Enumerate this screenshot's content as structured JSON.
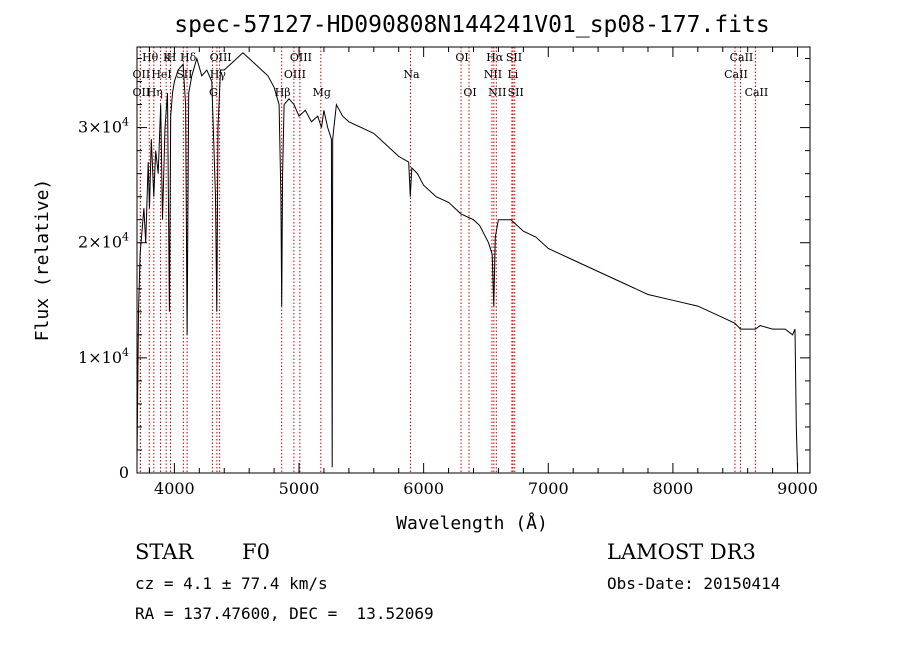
{
  "chart_data": {
    "type": "line",
    "title": "spec-57127-HD090808N144241V01_sp08-177.fits",
    "xlabel": "Wavelength (Å)",
    "ylabel": "Flux (relative)",
    "xlim": [
      3700,
      9100
    ],
    "ylim": [
      0,
      37000
    ],
    "x_ticks": [
      4000,
      5000,
      6000,
      7000,
      8000,
      9000
    ],
    "y_ticks": [
      {
        "value": 0,
        "mantissa": "0",
        "exponent": ""
      },
      {
        "value": 10000,
        "mantissa": "1×10",
        "exponent": "4"
      },
      {
        "value": 20000,
        "mantissa": "2×10",
        "exponent": "4"
      },
      {
        "value": 30000,
        "mantissa": "3×10",
        "exponent": "4"
      }
    ],
    "series": [
      {
        "name": "spectrum",
        "x": [
          3700,
          3712,
          3725,
          3740,
          3755,
          3770,
          3790,
          3800,
          3815,
          3835,
          3850,
          3870,
          3890,
          3905,
          3925,
          3945,
          3960,
          3970,
          3985,
          4000,
          4030,
          4070,
          4090,
          4102,
          4115,
          4140,
          4180,
          4220,
          4260,
          4300,
          4330,
          4340,
          4350,
          4370,
          4400,
          4450,
          4500,
          4550,
          4600,
          4650,
          4700,
          4750,
          4800,
          4840,
          4855,
          4861,
          4868,
          4880,
          4920,
          4960,
          5000,
          5050,
          5100,
          5150,
          5180,
          5200,
          5230,
          5260,
          5266,
          5270,
          5280,
          5300,
          5350,
          5400,
          5500,
          5600,
          5700,
          5800,
          5880,
          5893,
          5905,
          5950,
          6000,
          6100,
          6200,
          6300,
          6400,
          6450,
          6520,
          6550,
          6563,
          6575,
          6600,
          6700,
          6800,
          6900,
          7000,
          7200,
          7400,
          7600,
          7800,
          8000,
          8200,
          8400,
          8498,
          8542,
          8580,
          8662,
          8700,
          8800,
          8900,
          8960,
          8980,
          8990,
          9000
        ],
        "y": [
          1000,
          14000,
          19000,
          21000,
          23000,
          20000,
          27000,
          23000,
          29000,
          24000,
          28000,
          26000,
          32000,
          22000,
          30000,
          33000,
          14000,
          31000,
          33000,
          34000,
          35000,
          35500,
          32000,
          12000,
          33000,
          34500,
          36000,
          34500,
          35000,
          34000,
          24000,
          14000,
          30000,
          35000,
          35000,
          35500,
          36000,
          36500,
          36000,
          35500,
          35000,
          34500,
          33500,
          32000,
          24000,
          14500,
          26000,
          32000,
          32500,
          32000,
          31000,
          31500,
          30500,
          31000,
          30000,
          31500,
          30000,
          29000,
          500,
          29000,
          30000,
          32000,
          31000,
          30500,
          30000,
          29500,
          28500,
          27500,
          27000,
          24000,
          26500,
          26000,
          25000,
          24000,
          23500,
          22500,
          22000,
          21500,
          20000,
          19000,
          14500,
          20500,
          22000,
          22000,
          21000,
          20500,
          19500,
          18500,
          17500,
          16500,
          15500,
          15000,
          14500,
          13500,
          13000,
          12500,
          12500,
          12500,
          12800,
          12500,
          12500,
          12000,
          12500,
          4000,
          500
        ]
      }
    ],
    "lines": [
      {
        "label": "Hθ",
        "wavelength": 3798,
        "row": 1
      },
      {
        "label": "OII",
        "wavelength": 3727,
        "row": 2
      },
      {
        "label": "OII",
        "wavelength": 3727,
        "row": 3
      },
      {
        "label": "Hη",
        "wavelength": 3835,
        "row": 3
      },
      {
        "label": "HeI",
        "wavelength": 3889,
        "row": 2
      },
      {
        "label": "K",
        "wavelength": 3934,
        "row": 1
      },
      {
        "label": "H",
        "wavelength": 3969,
        "row": 1
      },
      {
        "label": "SII",
        "wavelength": 4072,
        "row": 2
      },
      {
        "label": "Hδ",
        "wavelength": 4102,
        "row": 1
      },
      {
        "label": "G",
        "wavelength": 4305,
        "row": 3
      },
      {
        "label": "Hγ",
        "wavelength": 4341,
        "row": 2
      },
      {
        "label": "OIII",
        "wavelength": 4363,
        "row": 1
      },
      {
        "label": "Hβ",
        "wavelength": 4861,
        "row": 3
      },
      {
        "label": "OIII",
        "wavelength": 4959,
        "row": 2
      },
      {
        "label": "OIII",
        "wavelength": 5007,
        "row": 1
      },
      {
        "label": "Mg",
        "wavelength": 5175,
        "row": 3
      },
      {
        "label": "Na",
        "wavelength": 5894,
        "row": 2
      },
      {
        "label": "OI",
        "wavelength": 6300,
        "row": 1
      },
      {
        "label": "OI",
        "wavelength": 6364,
        "row": 3
      },
      {
        "label": "NII",
        "wavelength": 6548,
        "row": 2
      },
      {
        "label": "Hα",
        "wavelength": 6563,
        "row": 1
      },
      {
        "label": "NII",
        "wavelength": 6583,
        "row": 3
      },
      {
        "label": "Li",
        "wavelength": 6708,
        "row": 2
      },
      {
        "label": "SII",
        "wavelength": 6717,
        "row": 1
      },
      {
        "label": "SII",
        "wavelength": 6731,
        "row": 3
      },
      {
        "label": "CaII",
        "wavelength": 8498,
        "row": 2
      },
      {
        "label": "CaII",
        "wavelength": 8542,
        "row": 1
      },
      {
        "label": "CaII",
        "wavelength": 8662,
        "row": 3
      }
    ]
  },
  "info": {
    "class_label": "STAR",
    "subclass": "F0",
    "survey": "LAMOST DR3",
    "cz": "cz = 4.1 ± 77.4 km/s",
    "obs_date": "Obs-Date: 20150414",
    "coords": "RA = 137.47600, DEC =  13.52069"
  },
  "colors": {
    "line_marker": "#cc0000",
    "spectrum": "#000000",
    "axes": "#000000"
  }
}
